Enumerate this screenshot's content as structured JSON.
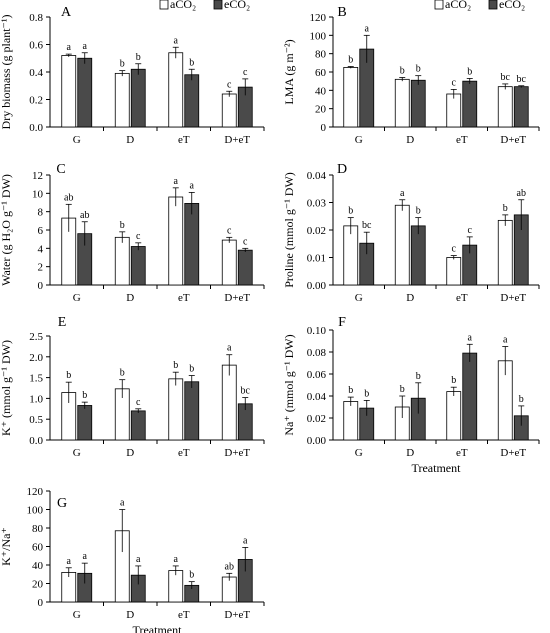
{
  "colors": {
    "aCO2": "#ffffff",
    "eCO2": "#4a4a4a",
    "stroke": "#000000"
  },
  "chart_data": [
    {
      "type": "bar",
      "panel": "A",
      "categories": [
        "G",
        "D",
        "eT",
        "D+eT"
      ],
      "ylabel": "Dry biomass (g plant⁻¹)",
      "xlabel": "",
      "ylim": [
        0,
        0.8
      ],
      "yticks": [
        "0.0",
        "0.2",
        "0.4",
        "0.6",
        "0.8"
      ],
      "legend": {
        "position": "top-right",
        "entries": [
          "aCO₂",
          "eCO₂"
        ]
      },
      "series": [
        {
          "name": "aCO₂",
          "values": [
            0.52,
            0.39,
            0.54,
            0.24
          ],
          "errors": [
            0.01,
            0.02,
            0.04,
            0.02
          ],
          "letters": [
            "a",
            "b",
            "a",
            "c"
          ]
        },
        {
          "name": "eCO₂",
          "values": [
            0.5,
            0.42,
            0.38,
            0.29
          ],
          "errors": [
            0.04,
            0.04,
            0.04,
            0.06
          ],
          "letters": [
            "a",
            "b",
            "b",
            "c"
          ]
        }
      ]
    },
    {
      "type": "bar",
      "panel": "B",
      "categories": [
        "G",
        "D",
        "eT",
        "D+eT"
      ],
      "ylabel": "LMA (g m⁻²)",
      "xlabel": "",
      "ylim": [
        0,
        120
      ],
      "yticks": [
        "0",
        "20",
        "40",
        "60",
        "80",
        "100",
        "120"
      ],
      "legend": {
        "position": "top-right",
        "entries": [
          "aCO₂",
          "eCO₂"
        ]
      },
      "series": [
        {
          "name": "aCO₂",
          "values": [
            65,
            52,
            36,
            44
          ],
          "errors": [
            1,
            2,
            5,
            3
          ],
          "letters": [
            "b",
            "b",
            "c",
            "bc"
          ]
        },
        {
          "name": "eCO₂",
          "values": [
            85,
            51,
            50,
            44
          ],
          "errors": [
            15,
            5,
            3,
            1
          ],
          "letters": [
            "a",
            "b",
            "b",
            "bc"
          ]
        }
      ]
    },
    {
      "type": "bar",
      "panel": "C",
      "categories": [
        "G",
        "D",
        "eT",
        "D+eT"
      ],
      "ylabel": "Water (g H₂O g⁻¹ DW)",
      "xlabel": "",
      "ylim": [
        0,
        12
      ],
      "yticks": [
        "0",
        "2",
        "4",
        "6",
        "8",
        "10",
        "12"
      ],
      "series": [
        {
          "name": "aCO₂",
          "values": [
            7.3,
            5.2,
            9.6,
            4.9
          ],
          "errors": [
            1.5,
            0.6,
            1.0,
            0.3
          ],
          "letters": [
            "ab",
            "b",
            "a",
            "c"
          ]
        },
        {
          "name": "eCO₂",
          "values": [
            5.6,
            4.2,
            8.9,
            3.8
          ],
          "errors": [
            1.3,
            0.4,
            1.2,
            0.2
          ],
          "letters": [
            "ab",
            "c",
            "a",
            "c"
          ]
        }
      ]
    },
    {
      "type": "bar",
      "panel": "D",
      "categories": [
        "G",
        "D",
        "eT",
        "D+eT"
      ],
      "ylabel": "Proline (mmol g⁻¹ DW)",
      "xlabel": "",
      "ylim": [
        0,
        0.04
      ],
      "yticks": [
        "0.00",
        "0.01",
        "0.02",
        "0.03",
        "0.04"
      ],
      "series": [
        {
          "name": "aCO₂",
          "values": [
            0.0215,
            0.029,
            0.01,
            0.0235
          ],
          "errors": [
            0.003,
            0.002,
            0.0007,
            0.002
          ],
          "letters": [
            "b",
            "a",
            "c",
            "b"
          ]
        },
        {
          "name": "eCO₂",
          "values": [
            0.0152,
            0.0215,
            0.0145,
            0.0255
          ],
          "errors": [
            0.004,
            0.003,
            0.003,
            0.0055
          ],
          "letters": [
            "bc",
            "b",
            "c",
            "ab"
          ]
        }
      ]
    },
    {
      "type": "bar",
      "panel": "E",
      "categories": [
        "G",
        "D",
        "eT",
        "D+eT"
      ],
      "ylabel": "K⁺ (mmol g⁻¹ DW)",
      "xlabel": "",
      "ylim": [
        0,
        2.5
      ],
      "yticks": [
        "0.0",
        "0.5",
        "1.0",
        "1.5",
        "2.0",
        "2.5"
      ],
      "series": [
        {
          "name": "aCO₂",
          "values": [
            1.14,
            1.23,
            1.47,
            1.8
          ],
          "errors": [
            0.25,
            0.22,
            0.16,
            0.25
          ],
          "letters": [
            "b",
            "b",
            "b",
            "a"
          ]
        },
        {
          "name": "eCO₂",
          "values": [
            0.83,
            0.7,
            1.4,
            0.87
          ],
          "errors": [
            0.08,
            0.05,
            0.15,
            0.15
          ],
          "letters": [
            "b",
            "c",
            "b",
            "bc"
          ]
        }
      ]
    },
    {
      "type": "bar",
      "panel": "F",
      "categories": [
        "G",
        "D",
        "eT",
        "D+eT"
      ],
      "ylabel": "Na⁺ (mmol g⁻¹ DW)",
      "xlabel": "Treatment",
      "ylim": [
        0,
        0.1
      ],
      "yticks": [
        "0.00",
        "0.02",
        "0.04",
        "0.06",
        "0.08",
        "0.10"
      ],
      "series": [
        {
          "name": "aCO₂",
          "values": [
            0.035,
            0.03,
            0.044,
            0.072
          ],
          "errors": [
            0.004,
            0.01,
            0.004,
            0.013
          ],
          "letters": [
            "b",
            "b",
            "b",
            "a"
          ]
        },
        {
          "name": "eCO₂",
          "values": [
            0.029,
            0.038,
            0.079,
            0.022
          ],
          "errors": [
            0.007,
            0.014,
            0.008,
            0.009
          ],
          "letters": [
            "b",
            "b",
            "a",
            "b"
          ]
        }
      ]
    },
    {
      "type": "bar",
      "panel": "G",
      "categories": [
        "G",
        "D",
        "eT",
        "D+eT"
      ],
      "ylabel": "K⁺/Na⁺",
      "xlabel": "Treatment",
      "ylim": [
        0,
        120
      ],
      "yticks": [
        "0",
        "20",
        "40",
        "60",
        "80",
        "100",
        "120"
      ],
      "series": [
        {
          "name": "aCO₂",
          "values": [
            32,
            77,
            34,
            27
          ],
          "errors": [
            5,
            23,
            5,
            4
          ],
          "letters": [
            "a",
            "a",
            "a",
            "ab"
          ]
        },
        {
          "name": "eCO₂",
          "values": [
            31,
            29,
            18,
            46
          ],
          "errors": [
            11,
            10,
            4,
            13
          ],
          "letters": [
            "a",
            "a",
            "b",
            "a"
          ]
        }
      ]
    }
  ]
}
